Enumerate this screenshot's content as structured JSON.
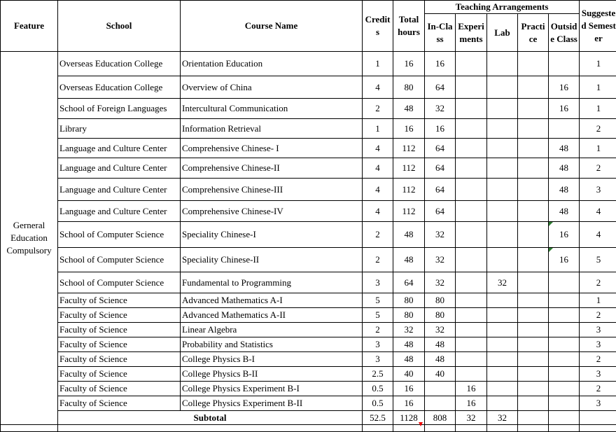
{
  "headers": {
    "feature": "Feature",
    "school": "School",
    "course": "Course Name",
    "credits": "Credits",
    "total_hours": "Total hours",
    "teaching": "Teaching Arrangements",
    "in_class": "In-Class",
    "experiments": "Experiments",
    "lab": "Lab",
    "practice": "Practice",
    "outside_class": "Outside Class",
    "semester": "Suggested Semester"
  },
  "feature_label": "Gerneral Education Compulsory",
  "rows": [
    {
      "school": "Overseas Education College",
      "course": "Orientation Education",
      "credits": "1",
      "total": "16",
      "in_class": "16",
      "experiments": "",
      "lab": "",
      "practice": "",
      "outside": "",
      "semester": "1"
    },
    {
      "school": "Overseas Education College",
      "course": "Overview of China",
      "credits": "4",
      "total": "80",
      "in_class": "64",
      "experiments": "",
      "lab": "",
      "practice": "",
      "outside": "16",
      "semester": "1"
    },
    {
      "school": "School of Foreign Languages",
      "course": "Intercultural Communication",
      "credits": "2",
      "total": "48",
      "in_class": "32",
      "experiments": "",
      "lab": "",
      "practice": "",
      "outside": "16",
      "semester": "1"
    },
    {
      "school": "Library",
      "course": "Information Retrieval",
      "credits": "1",
      "total": "16",
      "in_class": "16",
      "experiments": "",
      "lab": "",
      "practice": "",
      "outside": "",
      "semester": "2"
    },
    {
      "school": "Language and Culture Center",
      "course": "Comprehensive Chinese- I",
      "credits": "4",
      "total": "112",
      "in_class": "64",
      "experiments": "",
      "lab": "",
      "practice": "",
      "outside": "48",
      "semester": "1"
    },
    {
      "school": "Language and Culture Center",
      "course": "Comprehensive Chinese-II",
      "credits": "4",
      "total": "112",
      "in_class": "64",
      "experiments": "",
      "lab": "",
      "practice": "",
      "outside": "48",
      "semester": "2"
    },
    {
      "school": "Language and Culture Center",
      "course": "Comprehensive Chinese-III",
      "credits": "4",
      "total": "112",
      "in_class": "64",
      "experiments": "",
      "lab": "",
      "practice": "",
      "outside": "48",
      "semester": "3"
    },
    {
      "school": "Language and Culture Center",
      "course": "Comprehensive Chinese-IV",
      "credits": "4",
      "total": "112",
      "in_class": "64",
      "experiments": "",
      "lab": "",
      "practice": "",
      "outside": "48",
      "semester": "4"
    },
    {
      "school": "School of Computer Science",
      "course": "Speciality Chinese-I",
      "credits": "2",
      "total": "48",
      "in_class": "32",
      "experiments": "",
      "lab": "",
      "practice": "",
      "outside": "16",
      "semester": "4"
    },
    {
      "school": "School of Computer Science",
      "course": "Speciality Chinese-II",
      "credits": "2",
      "total": "48",
      "in_class": "32",
      "experiments": "",
      "lab": "",
      "practice": "",
      "outside": "16",
      "semester": "5"
    },
    {
      "school": "School of Computer Science",
      "course": "Fundamental to Programming",
      "credits": "3",
      "total": "64",
      "in_class": "32",
      "experiments": "",
      "lab": "32",
      "practice": "",
      "outside": "",
      "semester": "2"
    },
    {
      "school": "Faculty of Science",
      "course": "Advanced Mathematics A-I",
      "credits": "5",
      "total": "80",
      "in_class": "80",
      "experiments": "",
      "lab": "",
      "practice": "",
      "outside": "",
      "semester": "1"
    },
    {
      "school": "Faculty of Science",
      "course": "Advanced Mathematics A-II",
      "credits": "5",
      "total": "80",
      "in_class": "80",
      "experiments": "",
      "lab": "",
      "practice": "",
      "outside": "",
      "semester": "2"
    },
    {
      "school": "Faculty of Science",
      "course": "Linear Algebra",
      "credits": "2",
      "total": "32",
      "in_class": "32",
      "experiments": "",
      "lab": "",
      "practice": "",
      "outside": "",
      "semester": "3"
    },
    {
      "school": "Faculty of Science",
      "course": "Probability and Statistics",
      "credits": "3",
      "total": "48",
      "in_class": "48",
      "experiments": "",
      "lab": "",
      "practice": "",
      "outside": "",
      "semester": "3"
    },
    {
      "school": "Faculty of Science",
      "course": "College Physics B-I",
      "credits": "3",
      "total": "48",
      "in_class": "48",
      "experiments": "",
      "lab": "",
      "practice": "",
      "outside": "",
      "semester": "2"
    },
    {
      "school": "Faculty of Science",
      "course": "College Physics B-II",
      "credits": "2.5",
      "total": "40",
      "in_class": "40",
      "experiments": "",
      "lab": "",
      "practice": "",
      "outside": "",
      "semester": "3"
    },
    {
      "school": "Faculty of Science",
      "course": "College Physics Experiment B-I",
      "credits": "0.5",
      "total": "16",
      "in_class": "",
      "experiments": "16",
      "lab": "",
      "practice": "",
      "outside": "",
      "semester": "2"
    },
    {
      "school": "Faculty of Science",
      "course": "College Physics Experiment B-II",
      "credits": "0.5",
      "total": "16",
      "in_class": "",
      "experiments": "16",
      "lab": "",
      "practice": "",
      "outside": "",
      "semester": "3"
    }
  ],
  "subtotal": {
    "label": "Subtotal",
    "credits": "52.5",
    "total": "1128",
    "in_class": "808",
    "experiments": "32",
    "lab": "32",
    "practice": "",
    "outside": "",
    "semester": ""
  },
  "colors": {
    "comment_marker": "#2e7d32",
    "error_marker": "#e00000"
  }
}
